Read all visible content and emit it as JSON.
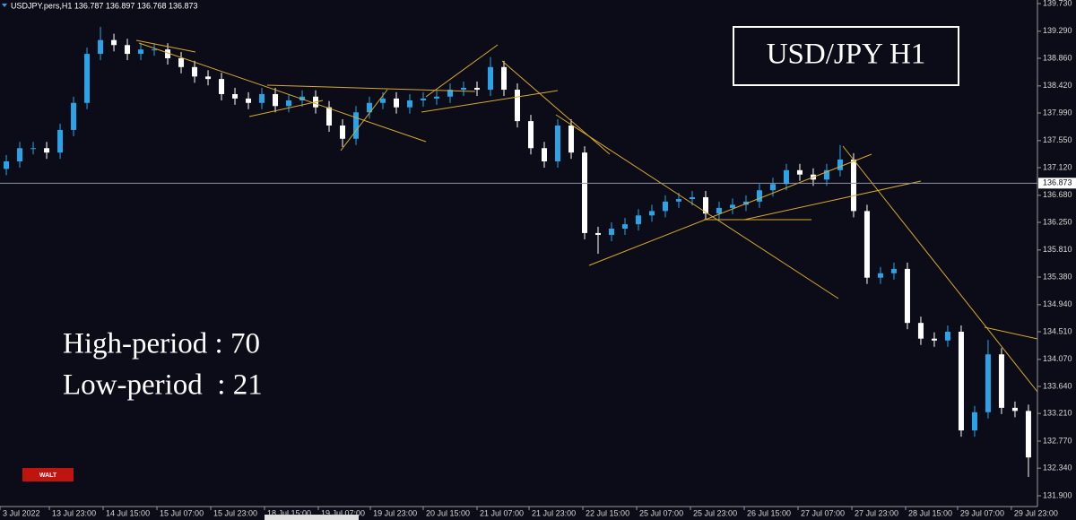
{
  "chart_data": {
    "type": "candlestick",
    "header": "USDJPY.pers,H1 136.787 136.897 136.768 136.873",
    "title": "USD/JPY H1",
    "annotations": [
      "High-period : 70",
      "Low-period  : 21"
    ],
    "badge": "WALT",
    "up_color": "#2ba3e6",
    "down_color": "#ffffff",
    "current_price": 136.873,
    "open": [
      137.1,
      137.22,
      137.43,
      137.43,
      137.36,
      137.72,
      138.15,
      138.93,
      139.15,
      139.07,
      138.93,
      139.0,
      139.0,
      138.86,
      138.72,
      138.57,
      138.53,
      138.29,
      138.22,
      138.15,
      138.29,
      138.1,
      138.19,
      138.25,
      138.08,
      137.79,
      137.58,
      138.0,
      138.15,
      138.22,
      138.08,
      138.19,
      138.22,
      138.25,
      138.36,
      138.39,
      138.36,
      138.72,
      138.36,
      137.86,
      137.43,
      137.22,
      137.79,
      137.36,
      136.08,
      136.05,
      136.15,
      136.22,
      136.36,
      136.43,
      136.58,
      136.62,
      136.65,
      136.39,
      136.48,
      136.53,
      136.58,
      136.76,
      136.86,
      137.08,
      137.01,
      136.93,
      137.08,
      137.25,
      136.43,
      135.37,
      135.44,
      135.51,
      134.65,
      134.4,
      134.37,
      134.51,
      132.94,
      133.23,
      134.15,
      133.3,
      133.25
    ],
    "high": [
      137.32,
      137.53,
      137.53,
      137.53,
      137.82,
      138.25,
      139.03,
      139.36,
      139.25,
      139.17,
      139.1,
      139.1,
      139.1,
      138.96,
      138.82,
      138.67,
      138.63,
      138.39,
      138.32,
      138.39,
      138.39,
      138.29,
      138.35,
      138.35,
      138.18,
      137.89,
      138.1,
      138.25,
      138.32,
      138.32,
      138.29,
      138.32,
      138.35,
      138.46,
      138.49,
      138.49,
      138.88,
      138.82,
      138.46,
      137.96,
      137.53,
      137.89,
      137.89,
      137.46,
      136.18,
      136.25,
      136.32,
      136.46,
      136.53,
      136.68,
      136.72,
      136.75,
      136.75,
      136.58,
      136.63,
      136.68,
      136.86,
      136.96,
      137.18,
      137.18,
      137.11,
      137.18,
      137.48,
      137.35,
      136.53,
      135.54,
      135.61,
      135.61,
      134.75,
      134.5,
      134.61,
      134.61,
      133.33,
      134.38,
      134.25,
      133.4,
      133.35
    ],
    "low": [
      137.0,
      137.12,
      137.33,
      137.26,
      137.26,
      137.62,
      138.05,
      138.83,
      138.97,
      138.83,
      138.83,
      138.9,
      138.76,
      138.62,
      138.47,
      138.43,
      138.19,
      138.12,
      138.05,
      138.05,
      138.0,
      138.0,
      138.09,
      137.98,
      137.69,
      137.45,
      137.48,
      137.9,
      138.05,
      137.98,
      137.98,
      138.09,
      138.12,
      138.15,
      138.26,
      138.26,
      138.26,
      138.26,
      137.76,
      137.33,
      137.12,
      137.12,
      137.26,
      135.98,
      135.75,
      135.95,
      136.05,
      136.12,
      136.26,
      136.33,
      136.48,
      136.52,
      136.29,
      136.29,
      136.38,
      136.43,
      136.48,
      136.66,
      136.76,
      136.91,
      136.83,
      136.83,
      136.98,
      136.33,
      135.27,
      135.27,
      135.34,
      134.55,
      134.3,
      134.27,
      134.27,
      132.84,
      132.84,
      133.13,
      133.2,
      133.15,
      132.2
    ],
    "close": [
      137.22,
      137.43,
      137.43,
      137.36,
      137.72,
      138.15,
      138.93,
      139.15,
      139.07,
      138.93,
      139.0,
      139.0,
      138.86,
      138.72,
      138.57,
      138.53,
      138.29,
      138.22,
      138.15,
      138.29,
      138.1,
      138.19,
      138.25,
      138.08,
      137.79,
      137.58,
      138.0,
      138.15,
      138.22,
      138.08,
      138.19,
      138.22,
      138.25,
      138.36,
      138.39,
      138.36,
      138.72,
      138.36,
      137.86,
      137.43,
      137.22,
      137.79,
      137.36,
      136.08,
      136.05,
      136.15,
      136.22,
      136.36,
      136.43,
      136.58,
      136.62,
      136.65,
      136.39,
      136.48,
      136.53,
      136.58,
      136.76,
      136.86,
      137.08,
      137.01,
      136.93,
      137.08,
      137.25,
      136.43,
      135.37,
      135.44,
      135.51,
      134.65,
      134.4,
      134.37,
      134.51,
      132.94,
      133.23,
      134.15,
      133.3,
      133.25,
      132.51
    ],
    "xlim": [
      -0.47,
      76.67
    ],
    "xticks": [
      {
        "value": -0.47,
        "label": "3 Jul 2022"
      },
      {
        "value": 3.2,
        "label": "13 Jul 23:00"
      },
      {
        "value": 7.2,
        "label": "14 Jul 15:00"
      },
      {
        "value": 11.2,
        "label": "15 Jul 07:00"
      },
      {
        "value": 15.2,
        "label": "15 Jul 23:00"
      },
      {
        "value": 19.2,
        "label": "18 Jul 15:00"
      },
      {
        "value": 23.2,
        "label": "19 Jul 07:00"
      },
      {
        "value": 27.07,
        "label": "19 Jul 23:00"
      },
      {
        "value": 31,
        "label": "20 Jul 15:00"
      },
      {
        "value": 35,
        "label": "21 Jul 07:00"
      },
      {
        "value": 38.87,
        "label": "21 Jul 23:00"
      },
      {
        "value": 42.87,
        "label": "22 Jul 15:00"
      },
      {
        "value": 46.87,
        "label": "25 Jul 07:00"
      },
      {
        "value": 50.87,
        "label": "25 Jul 23:00"
      },
      {
        "value": 54.87,
        "label": "26 Jul 15:00"
      },
      {
        "value": 58.87,
        "label": "27 Jul 07:00"
      },
      {
        "value": 62.87,
        "label": "27 Jul 23:00"
      },
      {
        "value": 66.87,
        "label": "28 Jul 15:00"
      },
      {
        "value": 70.73,
        "label": "29 Jul 07:00"
      },
      {
        "value": 74.73,
        "label": "29 Jul 23:00"
      }
    ],
    "ylim": [
      131.729,
      139.787
    ],
    "yticks": [
      {
        "value": 139.73,
        "label": "139.730"
      },
      {
        "value": 139.29,
        "label": "139.290"
      },
      {
        "value": 138.86,
        "label": "138.860"
      },
      {
        "value": 138.42,
        "label": "138.420"
      },
      {
        "value": 137.99,
        "label": "137.990"
      },
      {
        "value": 137.55,
        "label": "137.550"
      },
      {
        "value": 137.12,
        "label": "137.120"
      },
      {
        "value": 136.68,
        "label": "136.680"
      },
      {
        "value": 136.25,
        "label": "136.250"
      },
      {
        "value": 135.81,
        "label": "135.810"
      },
      {
        "value": 135.38,
        "label": "135.380"
      },
      {
        "value": 134.94,
        "label": "134.940"
      },
      {
        "value": 134.51,
        "label": "134.510"
      },
      {
        "value": 134.07,
        "label": "134.070"
      },
      {
        "value": 133.64,
        "label": "133.640"
      },
      {
        "value": 133.21,
        "label": "133.210"
      },
      {
        "value": 132.77,
        "label": "132.770"
      },
      {
        "value": 132.34,
        "label": "132.340"
      },
      {
        "value": 131.9,
        "label": "131.900"
      }
    ],
    "grid": false
  }
}
